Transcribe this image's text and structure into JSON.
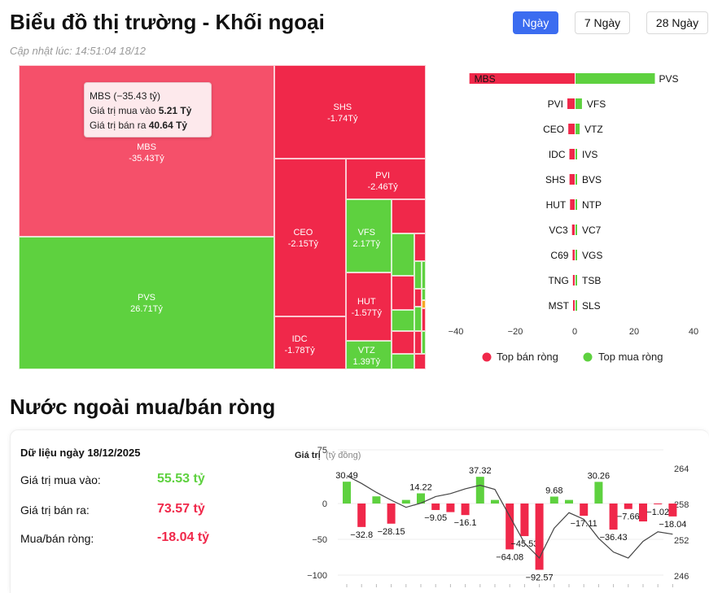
{
  "header": {
    "title": "Biểu đồ thị trường - Khối ngoại",
    "updated": "Cập nhật lúc: 14:51:04 18/12",
    "ranges": [
      "Ngày",
      "7 Ngày",
      "28 Ngày"
    ],
    "active_range": "Ngày"
  },
  "colors": {
    "sell": "#f0284a",
    "buy": "#5ed13f",
    "highlight": "#f5506a",
    "orange": "#f5a623",
    "accent": "#3b6cf0"
  },
  "tooltip": {
    "title": "MBS (−35.43 tỷ)",
    "buy_label": "Giá trị mua vào",
    "buy_value": "5.21 Tỷ",
    "sell_label": "Giá trị bán ra",
    "sell_value": "40.64 Tỷ"
  },
  "treemap": [
    {
      "code": "MBS",
      "value": "-35.43Tỷ",
      "side": "sell"
    },
    {
      "code": "PVS",
      "value": "26.71Tỷ",
      "side": "buy"
    },
    {
      "code": "SHS",
      "value": "-1.74Tỷ",
      "side": "sell"
    },
    {
      "code": "CEO",
      "value": "-2.15Tỷ",
      "side": "sell"
    },
    {
      "code": "IDC",
      "value": "-1.78Tỷ",
      "side": "sell"
    },
    {
      "code": "PVI",
      "value": "-2.46Tỷ",
      "side": "sell"
    },
    {
      "code": "VFS",
      "value": "2.17Tỷ",
      "side": "buy"
    },
    {
      "code": "HUT",
      "value": "-1.57Tỷ",
      "side": "sell"
    },
    {
      "code": "VTZ",
      "value": "1.39Tỷ",
      "side": "buy"
    }
  ],
  "chart_data": [
    {
      "type": "bar",
      "orientation": "horizontal",
      "rows": [
        {
          "sell_code": "MBS",
          "sell": -35.43,
          "buy_code": "PVS",
          "buy": 26.71
        },
        {
          "sell_code": "PVI",
          "sell": -2.46,
          "buy_code": "VFS",
          "buy": 2.17
        },
        {
          "sell_code": "CEO",
          "sell": -2.15,
          "buy_code": "VTZ",
          "buy": 1.39
        },
        {
          "sell_code": "IDC",
          "sell": -1.78,
          "buy_code": "IVS",
          "buy": 0.5
        },
        {
          "sell_code": "SHS",
          "sell": -1.74,
          "buy_code": "BVS",
          "buy": 0.4
        },
        {
          "sell_code": "HUT",
          "sell": -1.57,
          "buy_code": "NTP",
          "buy": 0.3
        },
        {
          "sell_code": "VC3",
          "sell": -0.9,
          "buy_code": "VC7",
          "buy": 0.2
        },
        {
          "sell_code": "C69",
          "sell": -0.7,
          "buy_code": "VGS",
          "buy": 0.15
        },
        {
          "sell_code": "TNG",
          "sell": -0.6,
          "buy_code": "TSB",
          "buy": 0.1
        },
        {
          "sell_code": "MST",
          "sell": -0.5,
          "buy_code": "SLS",
          "buy": 0.05
        }
      ],
      "xlim": [
        -40,
        40
      ],
      "xticks": [
        -40,
        -20,
        0,
        20,
        40
      ],
      "legend": [
        {
          "name": "Top bán ròng",
          "color": "#f0284a"
        },
        {
          "name": "Top mua ròng",
          "color": "#5ed13f"
        }
      ],
      "legend_position": "bottom"
    },
    {
      "type": "bar",
      "ylabel": "Giá trị",
      "yunit": "(tỷ đồng)",
      "ylim": [
        -100,
        75
      ],
      "yticks": [
        75,
        0,
        -50,
        -100
      ],
      "y2ticks": [
        264,
        258,
        252,
        246
      ],
      "y2lim": [
        246,
        264
      ],
      "values": [
        30.49,
        -32.8,
        10,
        -28.15,
        5,
        14.22,
        -9.05,
        -12,
        -16.1,
        37.32,
        5,
        -64.08,
        -45.53,
        -92.57,
        9.68,
        5,
        -17.11,
        30.26,
        -36.43,
        -7.66,
        -25,
        -1.02,
        -18.04
      ],
      "labels": [
        "30.49",
        "-32.8",
        "",
        "-28.15",
        "",
        "14.22",
        "-9.05",
        "",
        "-16.1",
        "37.32",
        "",
        "-64.08",
        "-45.53",
        "-92.57",
        "9.68",
        "",
        "-17.11",
        "30.26",
        "-36.43",
        "-7.66",
        "",
        "-1.02",
        "-18.04"
      ],
      "line": [
        262.8,
        261.5,
        260.0,
        258.7,
        257.5,
        258.2,
        259.3,
        259.8,
        260.6,
        261.2,
        260.5,
        256.0,
        251.5,
        249.0,
        254.0,
        256.6,
        255.5,
        252.3,
        250.0,
        249.0,
        251.8,
        253.4,
        253.0
      ]
    }
  ],
  "summary": {
    "date_line": "Dữ liệu ngày 18/12/2025",
    "buy_label": "Giá trị mua vào:",
    "buy_value": "55.53 tỷ",
    "sell_label": "Giá trị bán ra:",
    "sell_value": "73.57 tỷ",
    "net_label": "Mua/bán ròng:",
    "net_value": "-18.04 tỷ"
  },
  "section2_title": "Nước ngoài mua/bán ròng"
}
